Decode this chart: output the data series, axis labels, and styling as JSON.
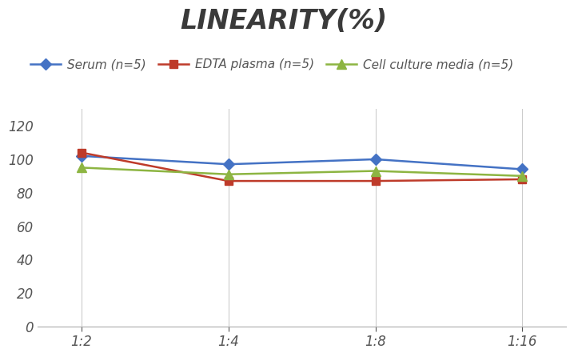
{
  "title": "LINEARITY(%)",
  "title_fontsize": 24,
  "title_fontstyle": "italic",
  "title_fontweight": "bold",
  "title_color": "#3a3a3a",
  "x_labels": [
    "1:2",
    "1:4",
    "1:8",
    "1:16"
  ],
  "x_positions": [
    0,
    1,
    2,
    3
  ],
  "series": [
    {
      "label": "Serum (n=5)",
      "values": [
        102,
        97,
        100,
        94
      ],
      "color": "#4472C4",
      "marker": "D",
      "marker_size": 7,
      "linewidth": 1.8
    },
    {
      "label": "EDTA plasma (n=5)",
      "values": [
        104,
        87,
        87,
        88
      ],
      "color": "#BE3B2A",
      "marker": "s",
      "marker_size": 7,
      "linewidth": 1.8
    },
    {
      "label": "Cell culture media (n=5)",
      "values": [
        95,
        91,
        93,
        90
      ],
      "color": "#8DB542",
      "marker": "^",
      "marker_size": 8,
      "linewidth": 1.8
    }
  ],
  "ylim": [
    0,
    130
  ],
  "yticks": [
    0,
    20,
    40,
    60,
    80,
    100,
    120
  ],
  "grid_color": "#CCCCCC",
  "background_color": "#FFFFFF",
  "legend_fontsize": 11
}
